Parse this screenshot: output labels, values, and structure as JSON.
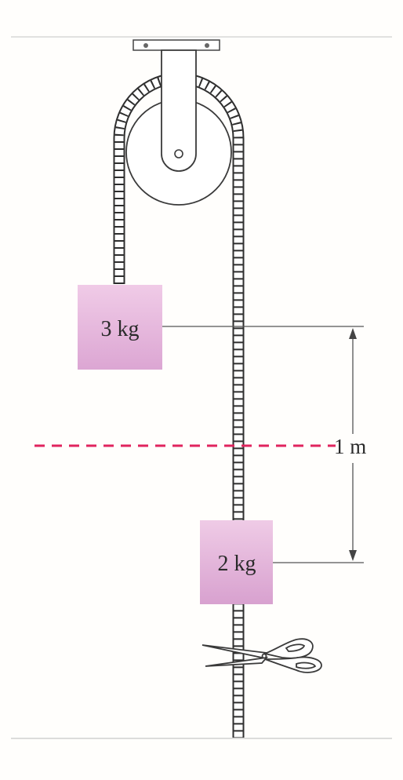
{
  "figure": {
    "mass_top_label": "3 kg",
    "mass_bottom_label": "2 kg",
    "distance_label": "1 m"
  },
  "colors": {
    "mass_fill_light": "#f2d0ea",
    "mass_fill_dark": "#d79ccd",
    "dashed_reference_line": "#e0245e",
    "rope_stroke": "#3a3a3a",
    "guide_lines": "#555555"
  },
  "icons": {
    "pulley": "pulley-icon",
    "scissors": "scissors-icon",
    "arrow_up": "arrow-up-icon",
    "arrow_down": "arrow-down-icon"
  }
}
